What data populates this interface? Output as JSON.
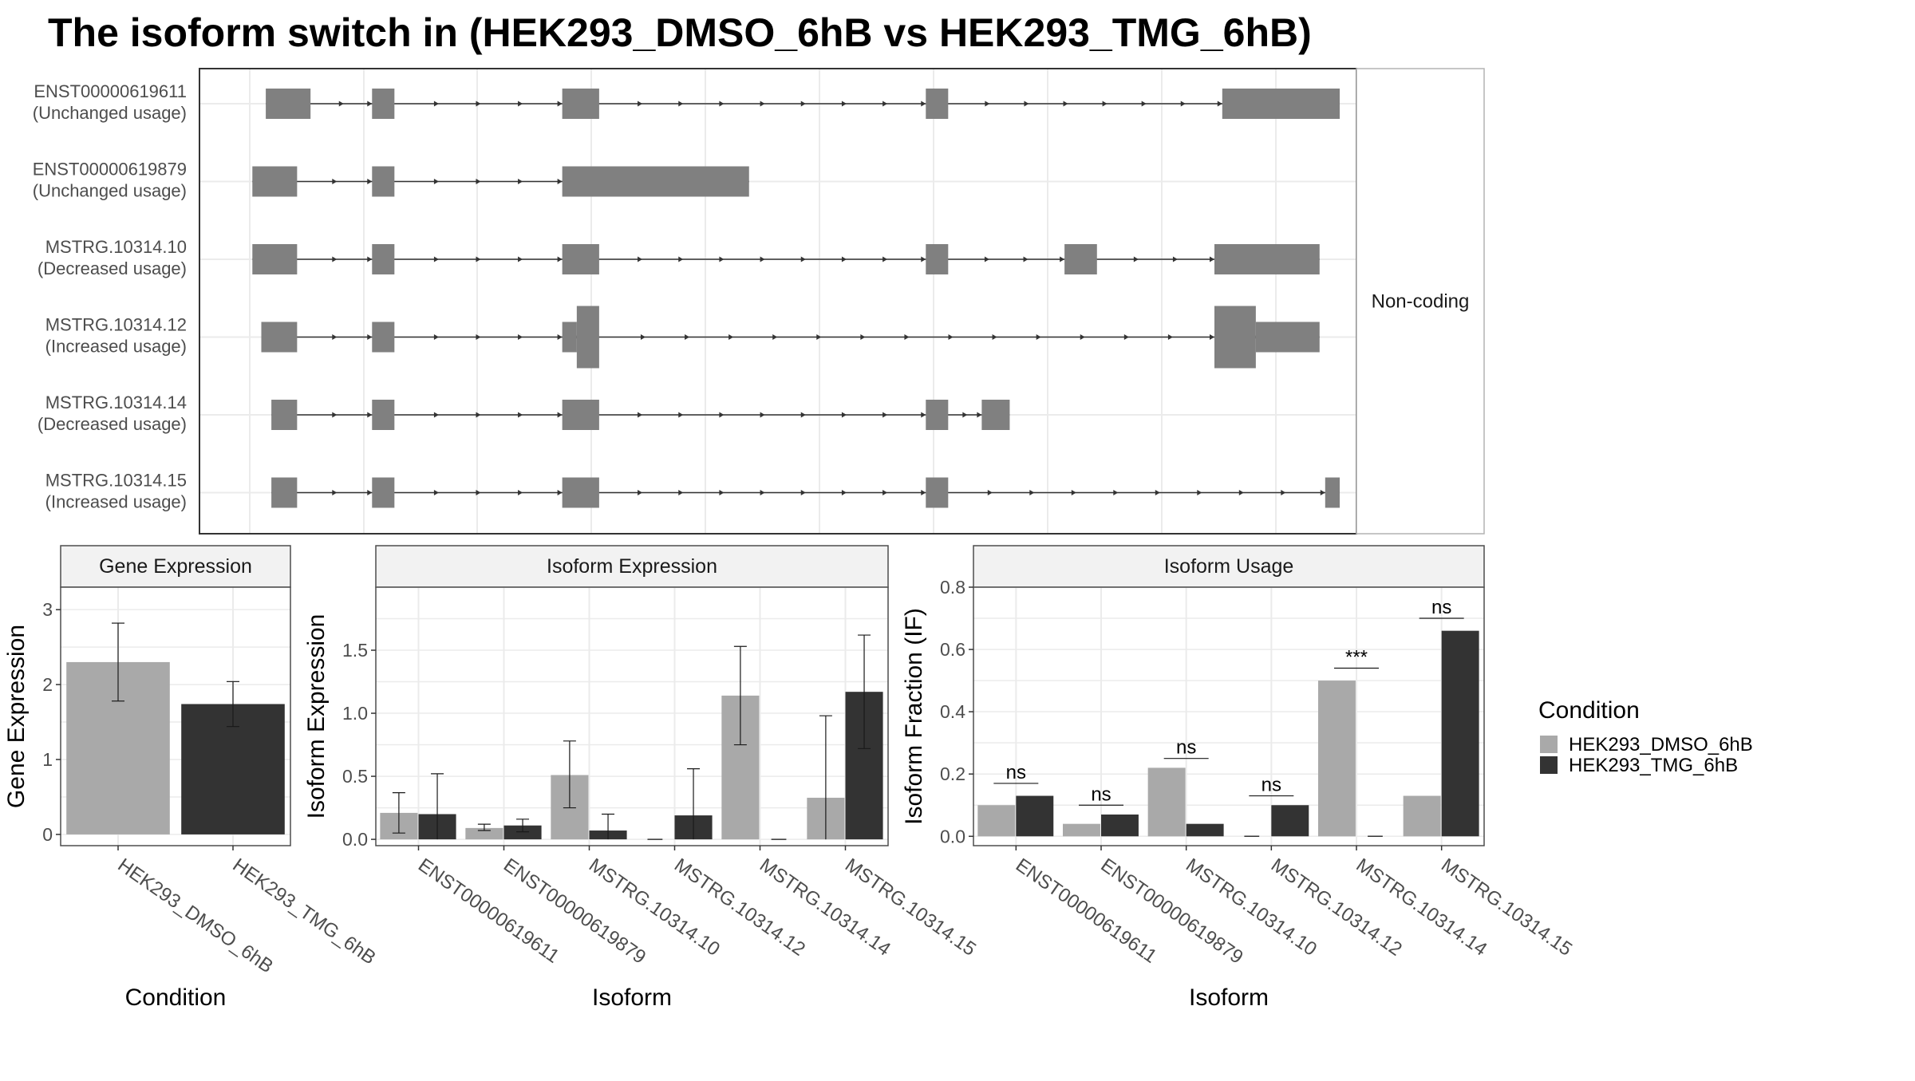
{
  "title": "The isoform switch in  (HEK293_DMSO_6hB vs HEK293_TMG_6hB)",
  "colors": {
    "dmso": "#a9a9a9",
    "tmg": "#333333",
    "exon": "#808080",
    "strip": "#f2f2f2",
    "grid": "#ebebeb",
    "frame": "#4d4d4d"
  },
  "transcripts": {
    "facet_label": "Non-coding",
    "rows": [
      {
        "name": "ENST00000619611",
        "usage": "(Unchanged usage)",
        "exons": [
          [
            0.05,
            0.09,
            "s"
          ],
          [
            0.145,
            0.165,
            "s"
          ],
          [
            0.315,
            0.348,
            "s"
          ],
          [
            0.64,
            0.66,
            "s"
          ],
          [
            0.905,
            1.01,
            "s"
          ]
        ],
        "span": [
          0.05,
          1.01
        ]
      },
      {
        "name": "ENST00000619879",
        "usage": "(Unchanged usage)",
        "exons": [
          [
            0.038,
            0.078,
            "s"
          ],
          [
            0.145,
            0.165,
            "s"
          ],
          [
            0.315,
            0.482,
            "s"
          ]
        ],
        "span": [
          0.038,
          0.482
        ]
      },
      {
        "name": "MSTRG.10314.10",
        "usage": "(Decreased usage)",
        "exons": [
          [
            0.038,
            0.078,
            "s"
          ],
          [
            0.145,
            0.165,
            "s"
          ],
          [
            0.315,
            0.348,
            "s"
          ],
          [
            0.64,
            0.66,
            "s"
          ],
          [
            0.764,
            0.793,
            "s"
          ],
          [
            0.898,
            0.992,
            "s"
          ]
        ],
        "span": [
          0.038,
          0.992
        ]
      },
      {
        "name": "MSTRG.10314.12",
        "usage": "(Increased usage)",
        "exons": [
          [
            0.046,
            0.078,
            "s"
          ],
          [
            0.145,
            0.165,
            "s"
          ],
          [
            0.315,
            0.328,
            "s"
          ],
          [
            0.328,
            0.348,
            "t"
          ],
          [
            0.898,
            0.935,
            "t"
          ],
          [
            0.935,
            0.992,
            "s"
          ]
        ],
        "span": [
          0.046,
          0.992
        ]
      },
      {
        "name": "MSTRG.10314.14",
        "usage": "(Decreased usage)",
        "exons": [
          [
            0.055,
            0.078,
            "s"
          ],
          [
            0.145,
            0.165,
            "s"
          ],
          [
            0.315,
            0.348,
            "s"
          ],
          [
            0.64,
            0.66,
            "s"
          ],
          [
            0.69,
            0.715,
            "s"
          ]
        ],
        "span": [
          0.055,
          0.715
        ]
      },
      {
        "name": "MSTRG.10314.15",
        "usage": "(Increased usage)",
        "exons": [
          [
            0.055,
            0.078,
            "s"
          ],
          [
            0.145,
            0.165,
            "s"
          ],
          [
            0.315,
            0.348,
            "s"
          ],
          [
            0.64,
            0.66,
            "s"
          ],
          [
            0.997,
            1.01,
            "s"
          ]
        ],
        "span": [
          0.055,
          1.01
        ]
      }
    ]
  },
  "chart_data": [
    {
      "type": "bar",
      "title": "Gene Expression",
      "xlabel": "Condition",
      "ylabel": "Gene Expression",
      "ylim": [
        -0.15,
        3.3
      ],
      "yticks": [
        0,
        1,
        2,
        3
      ],
      "categories": [
        "HEK293_DMSO_6hB",
        "HEK293_TMG_6hB"
      ],
      "series": [
        {
          "name": "HEK293_DMSO_6hB",
          "values": [
            2.3,
            null
          ],
          "err_low": [
            1.78,
            null
          ],
          "err_high": [
            2.82,
            null
          ]
        },
        {
          "name": "HEK293_TMG_6hB",
          "values": [
            null,
            1.74
          ],
          "err_low": [
            null,
            1.44
          ],
          "err_high": [
            null,
            2.04
          ]
        }
      ]
    },
    {
      "type": "bar",
      "title": "Isoform Expression",
      "xlabel": "Isoform",
      "ylabel": "Isoform Expression",
      "ylim": [
        -0.05,
        2.0
      ],
      "yticks": [
        "0.0",
        "0.5",
        "1.0",
        "1.5"
      ],
      "categories": [
        "ENST00000619611",
        "ENST00000619879",
        "MSTRG.10314.10",
        "MSTRG.10314.12",
        "MSTRG.10314.14",
        "MSTRG.10314.15"
      ],
      "series": [
        {
          "name": "HEK293_DMSO_6hB",
          "values": [
            0.21,
            0.09,
            0.51,
            0.0,
            1.14,
            0.33
          ],
          "err_low": [
            0.05,
            0.07,
            0.25,
            0.0,
            0.75,
            null
          ],
          "err_high": [
            0.37,
            0.12,
            0.78,
            0.0,
            1.53,
            0.98
          ]
        },
        {
          "name": "HEK293_TMG_6hB",
          "values": [
            0.2,
            0.11,
            0.07,
            0.19,
            0.0,
            1.17
          ],
          "err_low": [
            null,
            0.06,
            null,
            null,
            0.0,
            0.72
          ],
          "err_high": [
            0.52,
            0.16,
            0.2,
            0.56,
            0.0,
            1.62
          ]
        }
      ]
    },
    {
      "type": "bar",
      "title": "Isoform Usage",
      "xlabel": "Isoform",
      "ylabel": "Isoform Fraction (IF)",
      "ylim": [
        -0.03,
        0.8
      ],
      "yticks": [
        "0.0",
        "0.2",
        "0.4",
        "0.6",
        "0.8"
      ],
      "categories": [
        "ENST00000619611",
        "ENST00000619879",
        "MSTRG.10314.10",
        "MSTRG.10314.12",
        "MSTRG.10314.14",
        "MSTRG.10314.15"
      ],
      "series": [
        {
          "name": "HEK293_DMSO_6hB",
          "values": [
            0.1,
            0.04,
            0.22,
            0.0,
            0.5,
            0.13
          ]
        },
        {
          "name": "HEK293_TMG_6hB",
          "values": [
            0.13,
            0.07,
            0.04,
            0.1,
            0.0,
            0.66
          ]
        }
      ],
      "significance": [
        {
          "label": "ns",
          "y": 0.17
        },
        {
          "label": "ns",
          "y": 0.1
        },
        {
          "label": "ns",
          "y": 0.25
        },
        {
          "label": "ns",
          "y": 0.13
        },
        {
          "label": "***",
          "y": 0.54
        },
        {
          "label": "ns",
          "y": 0.7
        }
      ]
    }
  ],
  "legend": {
    "title": "Condition",
    "entries": [
      "HEK293_DMSO_6hB",
      "HEK293_TMG_6hB"
    ]
  }
}
